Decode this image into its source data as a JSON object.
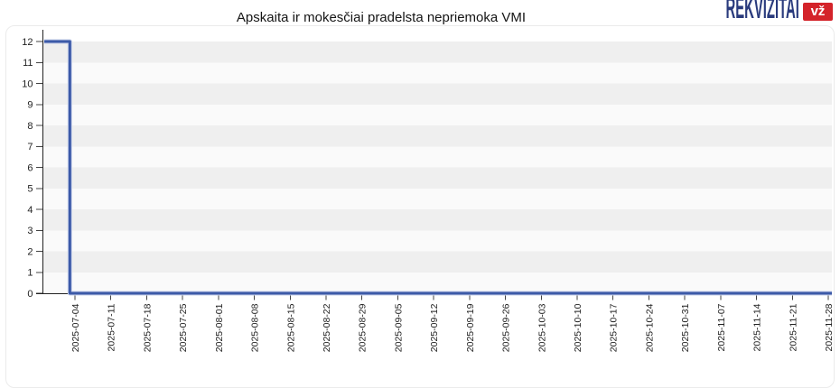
{
  "header": {
    "title": "Apskaita ir mokesčiai pradelsta nepriemoka VMI"
  },
  "logo": {
    "brand": "REKVIZITAI",
    "badge": "vž",
    "brand_color": "#2a3b7d",
    "badge_color": "#d4232a"
  },
  "chart_data": {
    "type": "line",
    "title": "Apskaita ir mokesčiai pradelsta nepriemoka VMI",
    "xlabel": "",
    "ylabel": "",
    "ylim": [
      0,
      12
    ],
    "y_ticks": [
      0,
      1,
      2,
      3,
      4,
      5,
      6,
      7,
      8,
      9,
      10,
      11,
      12
    ],
    "x_tick_labels": [
      "2025-07-04",
      "2025-07-11",
      "2025-07-18",
      "2025-07-25",
      "2025-08-01",
      "2025-08-08",
      "2025-08-15",
      "2025-08-22",
      "2025-08-29",
      "2025-09-05",
      "2025-09-12",
      "2025-09-19",
      "2025-09-26",
      "2025-10-03",
      "2025-10-10",
      "2025-10-17",
      "2025-10-24",
      "2025-10-31",
      "2025-11-07",
      "2025-11-14",
      "2025-11-21",
      "2025-11-28"
    ],
    "grid": "alternating-horizontal-bands",
    "legend_position": "none",
    "band_colors": {
      "shaded": "#efefef",
      "light": "#fafafa"
    },
    "axis_color": "#222222",
    "tick_color": "#444444",
    "label_color": "#222222",
    "series": [
      {
        "color": "#3c5aa8",
        "halo_color": "#c7d0ea",
        "step": true,
        "points": [
          [
            "2025-06-28",
            12
          ],
          [
            "2025-07-03",
            12
          ],
          [
            "2025-07-03",
            0
          ],
          [
            "2025-11-29",
            0
          ]
        ]
      }
    ]
  }
}
